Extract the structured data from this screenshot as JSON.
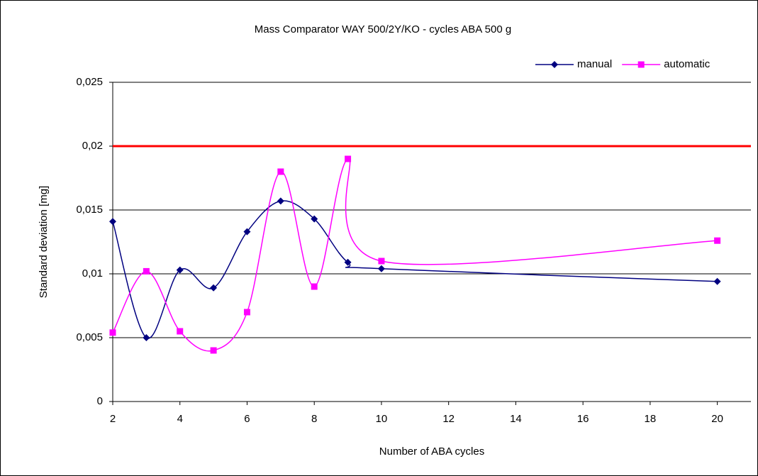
{
  "chart_data": {
    "type": "line",
    "title": "Mass Comparator WAY 500/2Y/KO - cycles ABA 500 g",
    "x_label": "Number of ABA cycles",
    "y_label": "Standard deviation [mg]",
    "x": [
      2,
      3,
      4,
      5,
      6,
      7,
      8,
      9,
      10,
      20
    ],
    "series": [
      {
        "name": "manual",
        "color": "#000080",
        "marker": "diamond",
        "values": [
          0.0141,
          0.005,
          0.0103,
          0.0089,
          0.0133,
          0.0157,
          0.0143,
          0.0109,
          0.0104,
          0.0094
        ]
      },
      {
        "name": "automatic",
        "color": "#ff00ff",
        "marker": "square",
        "values": [
          0.0054,
          0.0102,
          0.0055,
          0.004,
          0.007,
          0.018,
          0.009,
          0.019,
          0.011,
          0.0126
        ]
      }
    ],
    "reference_line": {
      "value": 0.02,
      "color": "#ff0000"
    },
    "xlim": [
      2,
      21
    ],
    "xticks": [
      2,
      4,
      6,
      8,
      10,
      12,
      14,
      16,
      18,
      20
    ],
    "ylim": [
      0,
      0.025
    ],
    "yticks": [
      0,
      {
        "value": 0.005,
        "label": "0,005"
      },
      {
        "value": 0.01,
        "label": "0,01"
      },
      {
        "value": 0.015,
        "label": "0,015"
      },
      {
        "value": 0.02,
        "label": "0,02"
      },
      {
        "value": 0.025,
        "label": "0,025"
      }
    ],
    "grid": true,
    "smooth": true,
    "legend_position": "top-right"
  }
}
